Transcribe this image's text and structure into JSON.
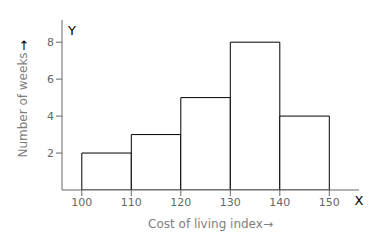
{
  "chart_data": {
    "type": "histogram",
    "xlabel": "Cost of living index→",
    "ylabel": "Number of weeks",
    "annotations": [
      "Y",
      "X",
      "↑"
    ],
    "bins": [
      100,
      110,
      120,
      130,
      140,
      150
    ],
    "values": [
      2,
      3,
      5,
      8,
      4
    ],
    "color": "#ffffff",
    "xlim": [
      96,
      156
    ],
    "ylim": [
      0,
      9.2
    ],
    "xticks": [
      100,
      110,
      120,
      130,
      140,
      150
    ],
    "yticks": [
      2,
      4,
      6,
      8
    ]
  }
}
